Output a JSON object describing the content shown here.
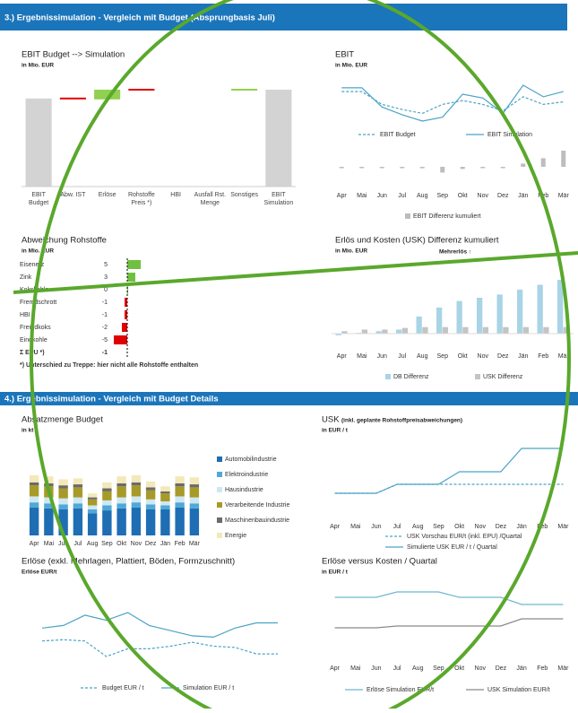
{
  "sections": [
    "3.) Ergebnissimulation - Vergleich mit Budget (Absprungbasis Juli)",
    "4.) Ergebnissimulation - Vergleich mit Budget Details"
  ],
  "chart_data": [
    {
      "type": "waterfall",
      "title": "EBIT Budget --> Simulation",
      "subtitle": "in Mio. EUR",
      "categories": [
        "EBIT Budget",
        "Abw. IST",
        "Erlöse",
        "Rohstoffe Preis *)",
        "HBI",
        "Ausfall Rst. Menge",
        "Sonstiges",
        "EBIT Simulation"
      ],
      "values": [
        100,
        -1,
        11,
        -1,
        0,
        0,
        1,
        110
      ],
      "colors": {
        "total": "#d3d3d3",
        "increase": "#92d050",
        "decrease": "#e00000"
      }
    },
    {
      "type": "line",
      "title": "EBIT",
      "subtitle": "in Mio. EUR",
      "categories": [
        "Apr",
        "Mai",
        "Jun",
        "Jul",
        "Aug",
        "Sep",
        "Okt",
        "Nov",
        "Dez",
        "Jän",
        "Feb",
        "Mär"
      ],
      "series": [
        {
          "name": "EBIT Budget",
          "color": "#4aa3c8",
          "dash": true,
          "values": [
            32,
            32,
            22,
            18,
            15,
            22,
            25,
            22,
            17,
            28,
            22,
            24
          ]
        },
        {
          "name": "EBIT Simulation",
          "color": "#4aa3c8",
          "values": [
            35,
            35,
            20,
            14,
            9,
            12,
            30,
            27,
            15,
            37,
            28,
            32
          ]
        },
        {
          "name": "EBIT Differenz kumuliert",
          "color": "#bdbdbd",
          "kind": "bar",
          "values": [
            -1,
            -1,
            -1,
            -1,
            -2,
            -8,
            -3,
            -1,
            0,
            3,
            8,
            15
          ]
        }
      ]
    },
    {
      "type": "hbar",
      "title": "Abweichung Rohstoffe",
      "subtitle": "in Mio. EUR",
      "categories": [
        "Eisenerz",
        "Zink",
        "Kokskohle",
        "Fremdschrott",
        "HBI",
        "Fremdkoks",
        "Eindkohle",
        "Σ EPU *)"
      ],
      "values": [
        5,
        3,
        0,
        -1,
        -1,
        -2,
        -5,
        -1
      ],
      "colors": {
        "increase": "#70c040",
        "decrease": "#e00000"
      },
      "footnote": "*) Unterschied zu Treppe: hier nicht alle Rohstoffe enthalten"
    },
    {
      "type": "bar",
      "title": "Erlös und Kosten (USK) Differenz kumuliert",
      "subtitle": "in Mio. EUR",
      "annotation": "Mehrerlös ↑",
      "categories": [
        "Apr",
        "Mai",
        "Jun",
        "Jul",
        "Aug",
        "Sep",
        "Okt",
        "Nov",
        "Dez",
        "Jän",
        "Feb",
        "Mär"
      ],
      "series": [
        {
          "name": "DB Differenz",
          "color": "#a9d4e6",
          "values": [
            -2,
            1,
            3,
            5,
            21,
            32,
            40,
            44,
            48,
            54,
            60,
            66
          ]
        },
        {
          "name": "USK Differenz",
          "color": "#c4c4c4",
          "values": [
            3,
            5,
            5,
            7,
            8,
            8,
            8,
            8,
            8,
            8,
            8,
            8
          ]
        }
      ]
    },
    {
      "type": "stacked",
      "title": "Absatzmenge Budget",
      "subtitle": "in kt",
      "categories": [
        "Apr",
        "Mai",
        "Jun",
        "Jul",
        "Aug",
        "Sep",
        "Okt",
        "Nov",
        "Dez",
        "Jän",
        "Feb",
        "Mär"
      ],
      "series": [
        {
          "name": "Automobilindustrie",
          "color": "#1f6eb4",
          "values": [
            28,
            27,
            26,
            27,
            22,
            25,
            27,
            28,
            26,
            26,
            28,
            27
          ]
        },
        {
          "name": "Elektroindustrie",
          "color": "#4fa9d6",
          "values": [
            5,
            5,
            5,
            5,
            4,
            5,
            5,
            5,
            5,
            4,
            5,
            5
          ]
        },
        {
          "name": "Hausindustrie",
          "color": "#cfe7f3",
          "values": [
            6,
            6,
            6,
            6,
            4,
            5,
            6,
            6,
            5,
            4,
            6,
            6
          ]
        },
        {
          "name": "Verarbeitende Industrie",
          "color": "#a79a28",
          "values": [
            11,
            11,
            10,
            10,
            6,
            9,
            11,
            11,
            9,
            8,
            10,
            10
          ]
        },
        {
          "name": "Maschinenbauindustrie",
          "color": "#6b6b6b",
          "values": [
            3,
            3,
            3,
            3,
            2,
            3,
            3,
            3,
            3,
            2,
            3,
            3
          ]
        },
        {
          "name": "Energie",
          "color": "#f3e8b8",
          "values": [
            7,
            7,
            6,
            6,
            4,
            6,
            7,
            7,
            6,
            5,
            7,
            7
          ]
        }
      ]
    },
    {
      "type": "line",
      "title": "USK",
      "note": "(inkl. geplante Rohstoffpreisabweichungen)",
      "subtitle": "in EUR / t",
      "categories": [
        "Apr",
        "Mai",
        "Jun",
        "Jul",
        "Aug",
        "Sep",
        "Okt",
        "Nov",
        "Dez",
        "Jän",
        "Feb",
        "Mär"
      ],
      "series": [
        {
          "name": "USK Vorschau EUR/t (inkl. EPU) /Quartal",
          "color": "#4aa3c8",
          "dash": true,
          "values": [
            50,
            50,
            50,
            55,
            55,
            55,
            55,
            55,
            55,
            55,
            55,
            55
          ]
        },
        {
          "name": "Simulierte USK EUR / t / Quartal",
          "color": "#4aa3c8",
          "values": [
            50,
            50,
            50,
            55,
            55,
            55,
            62,
            62,
            62,
            75,
            75,
            75
          ]
        }
      ]
    },
    {
      "type": "line",
      "title": "Erlöse (exkl. Mehrlagen, Plattiert, Böden, Formzuschnitt)",
      "subtitle": "Erlöse EUR/t",
      "series": [
        {
          "name": "Budget EUR / t",
          "color": "#4aa3c8",
          "dash": true,
          "values": [
            40,
            41,
            40,
            28,
            34,
            34,
            36,
            39,
            36,
            35,
            30,
            30
          ]
        },
        {
          "name": "Simulation EUR / t",
          "color": "#4aa3c8",
          "values": [
            50,
            52,
            60,
            56,
            62,
            52,
            48,
            44,
            43,
            50,
            54,
            54
          ]
        }
      ]
    },
    {
      "type": "line",
      "title": "Erlöse versus Kosten / Quartal",
      "subtitle": "in EUR / t",
      "categories": [
        "Apr",
        "Mai",
        "Jun",
        "Jul",
        "Aug",
        "Sep",
        "Okt",
        "Nov",
        "Dez",
        "Jän",
        "Feb",
        "Mär"
      ],
      "series": [
        {
          "name": "Erlöse Simulation EUR/t",
          "color": "#6fb7cf",
          "values": [
            62,
            62,
            62,
            65,
            65,
            65,
            62,
            62,
            62,
            58,
            58,
            58
          ]
        },
        {
          "name": "USK Simulation EUR/t",
          "color": "#8a8a8a",
          "values": [
            45,
            45,
            45,
            46,
            46,
            46,
            46,
            46,
            46,
            50,
            50,
            50
          ]
        }
      ]
    }
  ]
}
